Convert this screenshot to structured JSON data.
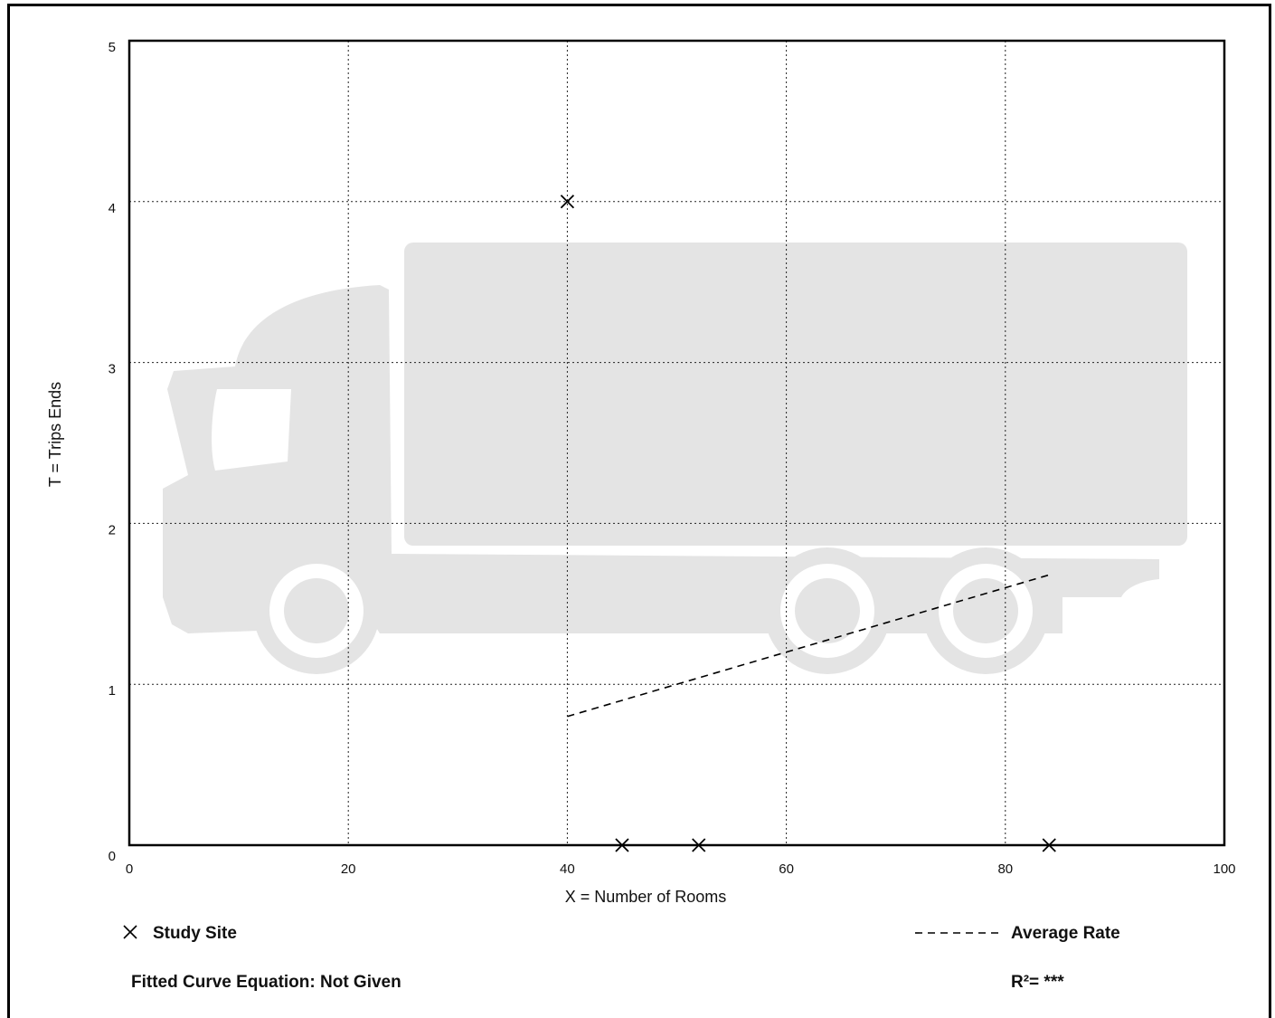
{
  "chart_data": {
    "type": "scatter",
    "xlabel": "X = Number of Rooms",
    "ylabel": "T = Trips Ends",
    "xlim": [
      0,
      100
    ],
    "ylim": [
      0,
      5
    ],
    "xticks": [
      0,
      20,
      40,
      60,
      80,
      100
    ],
    "yticks": [
      0,
      1,
      2,
      3,
      4,
      5
    ],
    "grid": true,
    "series": [
      {
        "name": "Study Site",
        "marker": "x",
        "points": [
          {
            "x": 40,
            "y": 4
          },
          {
            "x": 45,
            "y": 0
          },
          {
            "x": 52,
            "y": 0
          },
          {
            "x": 84,
            "y": 0
          }
        ]
      },
      {
        "name": "Average Rate",
        "style": "dashed",
        "points": [
          {
            "x": 40,
            "y": 0.8
          },
          {
            "x": 84,
            "y": 1.68
          }
        ]
      }
    ],
    "legend": {
      "study_site": "Study Site",
      "average_rate": "Average Rate"
    },
    "equation": "Fitted Curve Equation: Not Given",
    "r_squared": "R²= ***",
    "watermark": "truck-silhouette"
  }
}
